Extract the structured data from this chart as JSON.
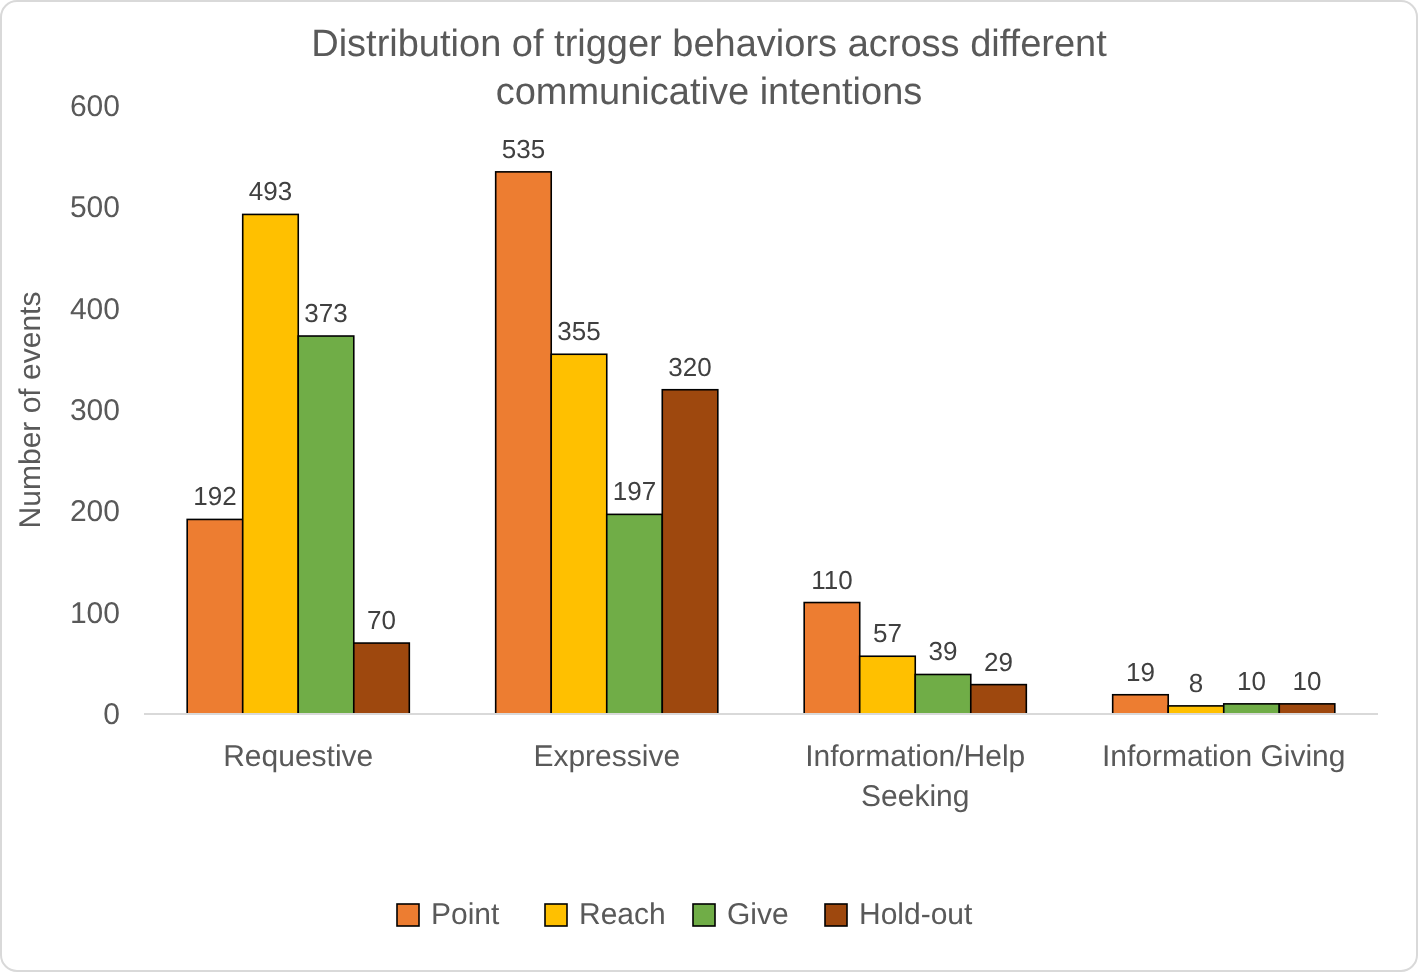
{
  "chart_data": {
    "type": "bar",
    "title": "Distribution of trigger behaviors across different communicative intentions",
    "ylabel": "Number of events",
    "categories": [
      "Requestive",
      "Expressive",
      "Information/Help Seeking",
      "Information Giving"
    ],
    "series": [
      {
        "name": "Point",
        "color": "#ed7d31",
        "values": [
          192,
          535,
          110,
          19
        ]
      },
      {
        "name": "Reach",
        "color": "#ffc000",
        "values": [
          493,
          355,
          57,
          8
        ]
      },
      {
        "name": "Give",
        "color": "#70ad47",
        "values": [
          373,
          197,
          39,
          10
        ]
      },
      {
        "name": "Hold-out",
        "color": "#9e480e",
        "values": [
          70,
          320,
          29,
          10
        ]
      }
    ],
    "ylim": [
      0,
      600
    ],
    "yticks": [
      0,
      100,
      200,
      300,
      400,
      500,
      600
    ],
    "data_labels": true,
    "legend": "bottom",
    "grid": false
  }
}
